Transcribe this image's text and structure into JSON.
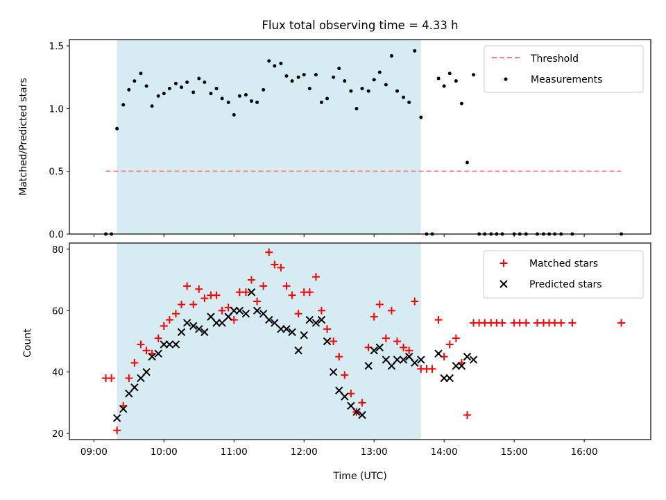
{
  "colors": {
    "shade": "#add8e6",
    "threshold": "#ff8080",
    "matched": "#ff0000",
    "predicted": "#000000",
    "measurement": "#000000"
  },
  "chart_data": [
    {
      "type": "scatter",
      "panel": "top",
      "title": "Flux total observing time = 4.33 h",
      "xlabel": "",
      "ylabel": "Matched/Predicted stars",
      "x_unit": "hours UTC",
      "xlim": [
        8.65,
        16.95
      ],
      "ylim": [
        0,
        1.55
      ],
      "yticks": [
        {
          "v": 0,
          "label": "0.0"
        },
        {
          "v": 0.5,
          "label": "0.5"
        },
        {
          "v": 1.0,
          "label": "1.0"
        },
        {
          "v": 1.5,
          "label": "1.5"
        }
      ],
      "shaded_span": [
        9.33,
        13.67
      ],
      "legend_position": "top-right",
      "threshold": {
        "name": "Threshold",
        "y": 0.5,
        "x_range": [
          9.17,
          16.53
        ]
      },
      "series": [
        {
          "name": "Measurements",
          "points": [
            [
              9.17,
              0
            ],
            [
              9.25,
              0
            ],
            [
              9.33,
              0.84
            ],
            [
              9.42,
              1.03
            ],
            [
              9.5,
              1.15
            ],
            [
              9.58,
              1.22
            ],
            [
              9.67,
              1.28
            ],
            [
              9.75,
              1.18
            ],
            [
              9.83,
              1.02
            ],
            [
              9.92,
              1.1
            ],
            [
              10.0,
              1.12
            ],
            [
              10.08,
              1.16
            ],
            [
              10.17,
              1.2
            ],
            [
              10.25,
              1.17
            ],
            [
              10.33,
              1.21
            ],
            [
              10.42,
              1.13
            ],
            [
              10.5,
              1.24
            ],
            [
              10.58,
              1.21
            ],
            [
              10.67,
              1.12
            ],
            [
              10.75,
              1.16
            ],
            [
              10.83,
              1.08
            ],
            [
              10.92,
              1.05
            ],
            [
              11.0,
              0.95
            ],
            [
              11.08,
              1.1
            ],
            [
              11.17,
              1.11
            ],
            [
              11.25,
              1.06
            ],
            [
              11.33,
              1.05
            ],
            [
              11.42,
              1.15
            ],
            [
              11.5,
              1.38
            ],
            [
              11.58,
              1.34
            ],
            [
              11.67,
              1.36
            ],
            [
              11.75,
              1.26
            ],
            [
              11.83,
              1.22
            ],
            [
              11.92,
              1.25
            ],
            [
              12.0,
              1.27
            ],
            [
              12.08,
              1.16
            ],
            [
              12.17,
              1.27
            ],
            [
              12.25,
              1.05
            ],
            [
              12.33,
              1.08
            ],
            [
              12.42,
              1.25
            ],
            [
              12.5,
              1.32
            ],
            [
              12.58,
              1.22
            ],
            [
              12.67,
              1.14
            ],
            [
              12.75,
              1.0
            ],
            [
              12.83,
              1.16
            ],
            [
              12.92,
              1.14
            ],
            [
              13.0,
              1.23
            ],
            [
              13.08,
              1.29
            ],
            [
              13.17,
              1.19
            ],
            [
              13.25,
              1.42
            ],
            [
              13.33,
              1.14
            ],
            [
              13.42,
              1.09
            ],
            [
              13.5,
              1.05
            ],
            [
              13.58,
              1.46
            ],
            [
              13.67,
              0.93
            ],
            [
              13.75,
              0
            ],
            [
              13.83,
              0
            ],
            [
              13.92,
              1.24
            ],
            [
              14.0,
              1.18
            ],
            [
              14.08,
              1.28
            ],
            [
              14.17,
              1.22
            ],
            [
              14.25,
              1.04
            ],
            [
              14.33,
              0.57
            ],
            [
              14.42,
              1.27
            ],
            [
              14.5,
              0
            ],
            [
              14.58,
              0
            ],
            [
              14.67,
              0
            ],
            [
              14.75,
              0
            ],
            [
              14.83,
              0
            ],
            [
              15.0,
              0
            ],
            [
              15.08,
              0
            ],
            [
              15.17,
              0
            ],
            [
              15.33,
              0
            ],
            [
              15.42,
              0
            ],
            [
              15.5,
              0
            ],
            [
              15.58,
              0
            ],
            [
              15.67,
              0
            ],
            [
              15.83,
              0
            ],
            [
              16.53,
              0
            ]
          ]
        }
      ]
    },
    {
      "type": "scatter",
      "panel": "bottom",
      "xlabel": "Time (UTC)",
      "ylabel": "Count",
      "x_unit": "hours UTC",
      "xlim": [
        8.65,
        16.95
      ],
      "ylim": [
        18,
        82
      ],
      "xticks": [
        {
          "v": 9,
          "label": "09:00"
        },
        {
          "v": 10,
          "label": "10:00"
        },
        {
          "v": 11,
          "label": "11:00"
        },
        {
          "v": 12,
          "label": "12:00"
        },
        {
          "v": 13,
          "label": "13:00"
        },
        {
          "v": 14,
          "label": "14:00"
        },
        {
          "v": 15,
          "label": "15:00"
        },
        {
          "v": 16,
          "label": "16:00"
        }
      ],
      "yticks": [
        {
          "v": 20,
          "label": "20"
        },
        {
          "v": 40,
          "label": "40"
        },
        {
          "v": 60,
          "label": "60"
        },
        {
          "v": 80,
          "label": "80"
        }
      ],
      "shaded_span": [
        9.33,
        13.67
      ],
      "legend_position": "top-right",
      "series": [
        {
          "name": "Matched stars",
          "marker": "plus",
          "points": [
            [
              9.17,
              38
            ],
            [
              9.25,
              38
            ],
            [
              9.33,
              21
            ],
            [
              9.42,
              29
            ],
            [
              9.5,
              38
            ],
            [
              9.58,
              43
            ],
            [
              9.67,
              49
            ],
            [
              9.75,
              47
            ],
            [
              9.83,
              46
            ],
            [
              9.92,
              51
            ],
            [
              10.0,
              55
            ],
            [
              10.08,
              57
            ],
            [
              10.17,
              59
            ],
            [
              10.25,
              62
            ],
            [
              10.33,
              68
            ],
            [
              10.42,
              62
            ],
            [
              10.5,
              67
            ],
            [
              10.58,
              64
            ],
            [
              10.67,
              65
            ],
            [
              10.75,
              65
            ],
            [
              10.83,
              60
            ],
            [
              10.92,
              61
            ],
            [
              11.0,
              57
            ],
            [
              11.08,
              66
            ],
            [
              11.17,
              66
            ],
            [
              11.25,
              70
            ],
            [
              11.33,
              63
            ],
            [
              11.42,
              68
            ],
            [
              11.5,
              79
            ],
            [
              11.58,
              75
            ],
            [
              11.67,
              74
            ],
            [
              11.75,
              68
            ],
            [
              11.83,
              65
            ],
            [
              11.92,
              59
            ],
            [
              12.0,
              66
            ],
            [
              12.08,
              66
            ],
            [
              12.17,
              71
            ],
            [
              12.25,
              60
            ],
            [
              12.33,
              54
            ],
            [
              12.42,
              50
            ],
            [
              12.5,
              45
            ],
            [
              12.58,
              39
            ],
            [
              12.67,
              33
            ],
            [
              12.75,
              27
            ],
            [
              12.83,
              30
            ],
            [
              12.92,
              48
            ],
            [
              13.0,
              58
            ],
            [
              13.08,
              62
            ],
            [
              13.17,
              51
            ],
            [
              13.25,
              60
            ],
            [
              13.33,
              50
            ],
            [
              13.42,
              48
            ],
            [
              13.5,
              47
            ],
            [
              13.58,
              63
            ],
            [
              13.67,
              41
            ],
            [
              13.75,
              41
            ],
            [
              13.83,
              41
            ],
            [
              13.92,
              57
            ],
            [
              14.0,
              45
            ],
            [
              14.08,
              49
            ],
            [
              14.17,
              51
            ],
            [
              14.25,
              43
            ],
            [
              14.33,
              26
            ],
            [
              14.42,
              56
            ],
            [
              14.5,
              56
            ],
            [
              14.58,
              56
            ],
            [
              14.67,
              56
            ],
            [
              14.75,
              56
            ],
            [
              14.83,
              56
            ],
            [
              15.0,
              56
            ],
            [
              15.08,
              56
            ],
            [
              15.17,
              56
            ],
            [
              15.33,
              56
            ],
            [
              15.42,
              56
            ],
            [
              15.5,
              56
            ],
            [
              15.58,
              56
            ],
            [
              15.67,
              56
            ],
            [
              15.83,
              56
            ],
            [
              16.53,
              56
            ]
          ]
        },
        {
          "name": "Predicted stars",
          "marker": "x",
          "points": [
            [
              9.33,
              25
            ],
            [
              9.42,
              28
            ],
            [
              9.5,
              33
            ],
            [
              9.58,
              35
            ],
            [
              9.67,
              38
            ],
            [
              9.75,
              40
            ],
            [
              9.83,
              45
            ],
            [
              9.92,
              46
            ],
            [
              10.0,
              49
            ],
            [
              10.08,
              49
            ],
            [
              10.17,
              49
            ],
            [
              10.25,
              53
            ],
            [
              10.33,
              56
            ],
            [
              10.42,
              55
            ],
            [
              10.5,
              54
            ],
            [
              10.58,
              53
            ],
            [
              10.67,
              58
            ],
            [
              10.75,
              56
            ],
            [
              10.83,
              56
            ],
            [
              10.92,
              58
            ],
            [
              11.0,
              60
            ],
            [
              11.08,
              60
            ],
            [
              11.17,
              59
            ],
            [
              11.25,
              66
            ],
            [
              11.33,
              60
            ],
            [
              11.42,
              59
            ],
            [
              11.5,
              57
            ],
            [
              11.58,
              56
            ],
            [
              11.67,
              54
            ],
            [
              11.75,
              54
            ],
            [
              11.83,
              53
            ],
            [
              11.92,
              47
            ],
            [
              12.0,
              52
            ],
            [
              12.08,
              57
            ],
            [
              12.17,
              56
            ],
            [
              12.25,
              57
            ],
            [
              12.33,
              50
            ],
            [
              12.42,
              40
            ],
            [
              12.5,
              34
            ],
            [
              12.58,
              32
            ],
            [
              12.67,
              29
            ],
            [
              12.75,
              27
            ],
            [
              12.83,
              26
            ],
            [
              12.92,
              42
            ],
            [
              13.0,
              47
            ],
            [
              13.08,
              48
            ],
            [
              13.17,
              44
            ],
            [
              13.25,
              42
            ],
            [
              13.33,
              44
            ],
            [
              13.42,
              44
            ],
            [
              13.5,
              45
            ],
            [
              13.58,
              43
            ],
            [
              13.67,
              44
            ],
            [
              13.92,
              46
            ],
            [
              14.0,
              38
            ],
            [
              14.08,
              38
            ],
            [
              14.17,
              42
            ],
            [
              14.25,
              42
            ],
            [
              14.33,
              45
            ],
            [
              14.42,
              44
            ]
          ]
        }
      ]
    }
  ]
}
